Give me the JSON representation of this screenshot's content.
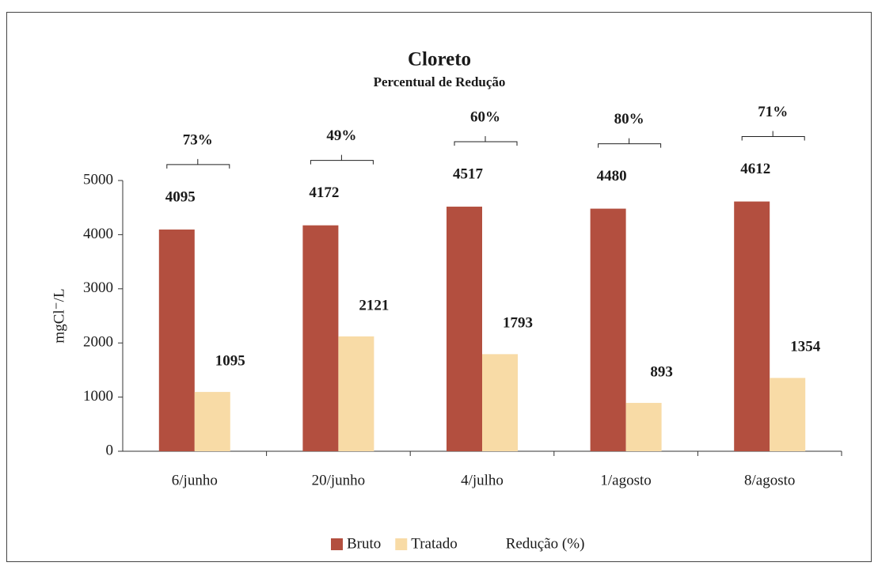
{
  "chart_data": {
    "type": "bar",
    "title": "Cloreto",
    "subtitle": "Percentual de Redução",
    "y_label": "mgCl⁻/L",
    "categories": [
      "6/junho",
      "20/junho",
      "4/julho",
      "1/agosto",
      "8/agosto"
    ],
    "series": [
      {
        "name": "Bruto",
        "color": "#b34f3f",
        "values": [
          4095,
          4172,
          4517,
          4480,
          4612
        ]
      },
      {
        "name": "Tratado",
        "color": "#f8dba6",
        "values": [
          1095,
          2121,
          1793,
          893,
          1354
        ]
      },
      {
        "name": "Redução (%)",
        "color": "#222222",
        "values": [
          73,
          49,
          60,
          80,
          71
        ],
        "value_labels": [
          "73%",
          "49%",
          "60%",
          "80%",
          "71%"
        ]
      }
    ],
    "ylim": [
      0,
      5000
    ],
    "yticks": [
      0,
      1000,
      2000,
      3000,
      4000,
      5000
    ],
    "grid": false,
    "legend": "bottom"
  }
}
